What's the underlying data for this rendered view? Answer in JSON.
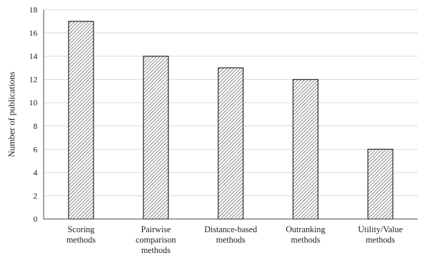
{
  "chart_data": {
    "type": "bar",
    "title": "",
    "xlabel": "",
    "ylabel": "Number of publications",
    "ylim": [
      0,
      18
    ],
    "yticks": [
      0,
      2,
      4,
      6,
      8,
      10,
      12,
      14,
      16,
      18
    ],
    "grid": true,
    "legend": "none",
    "bar_fill": "diagonal-hatch",
    "colors": {
      "bar_stroke": "#222222",
      "hatch": "#555555",
      "grid": "#d9d9d9"
    },
    "categories": [
      [
        "Scoring",
        "methods"
      ],
      [
        "Pairwise",
        "comparison",
        "methods"
      ],
      [
        "Distance-based",
        "methods"
      ],
      [
        "Outranking",
        "methods"
      ],
      [
        "Utility/Value",
        "methods"
      ]
    ],
    "values": [
      17,
      14,
      13,
      12,
      6
    ]
  }
}
